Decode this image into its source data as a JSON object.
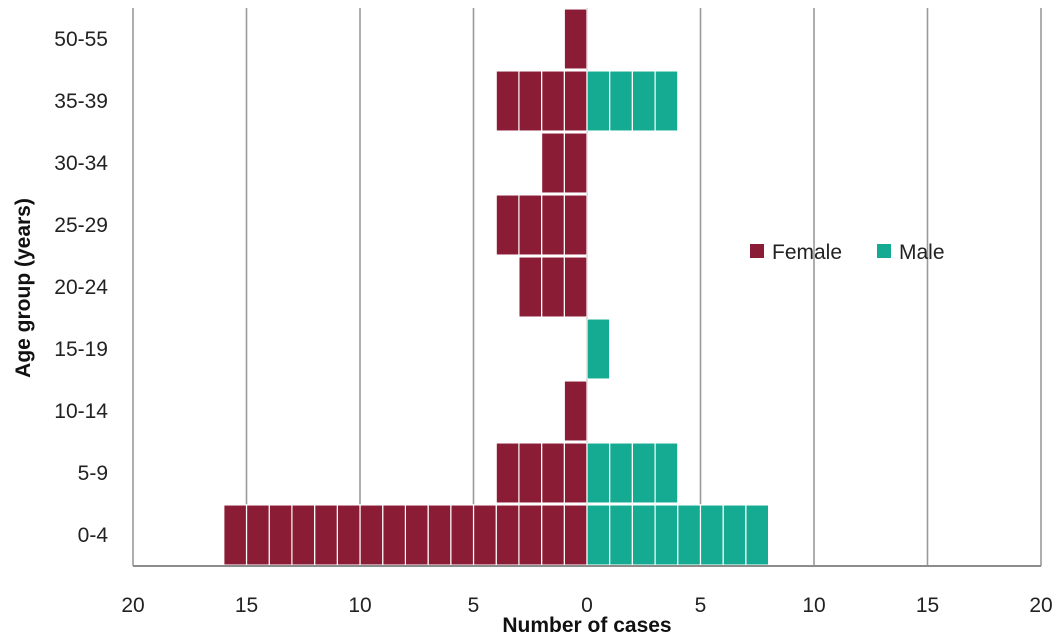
{
  "chart_data": {
    "type": "bar",
    "orientation": "horizontal",
    "layout": "population-pyramid",
    "categories": [
      "0-4",
      "5-9",
      "10-14",
      "15-19",
      "20-24",
      "25-29",
      "30-34",
      "35-39",
      "50-55"
    ],
    "series": [
      {
        "name": "Female",
        "color": "#8b1c35",
        "values": [
          16,
          4,
          1,
          0,
          3,
          4,
          2,
          4,
          1
        ]
      },
      {
        "name": "Male",
        "color": "#14ab92",
        "values": [
          8,
          4,
          0,
          1,
          0,
          0,
          0,
          4,
          0
        ]
      }
    ],
    "xlabel": "Number of cases",
    "ylabel": "Age group (years)",
    "xlim": [
      -20,
      20
    ],
    "x_ticks": [
      -20,
      -15,
      -10,
      -5,
      0,
      5,
      10,
      15,
      20
    ],
    "x_tick_labels": [
      "20",
      "15",
      "10",
      "5",
      "0",
      "5",
      "10",
      "15",
      "20"
    ],
    "grid": "vertical",
    "legend_position": "right",
    "bar_style": "stacked unit blocks (one block per case)"
  }
}
